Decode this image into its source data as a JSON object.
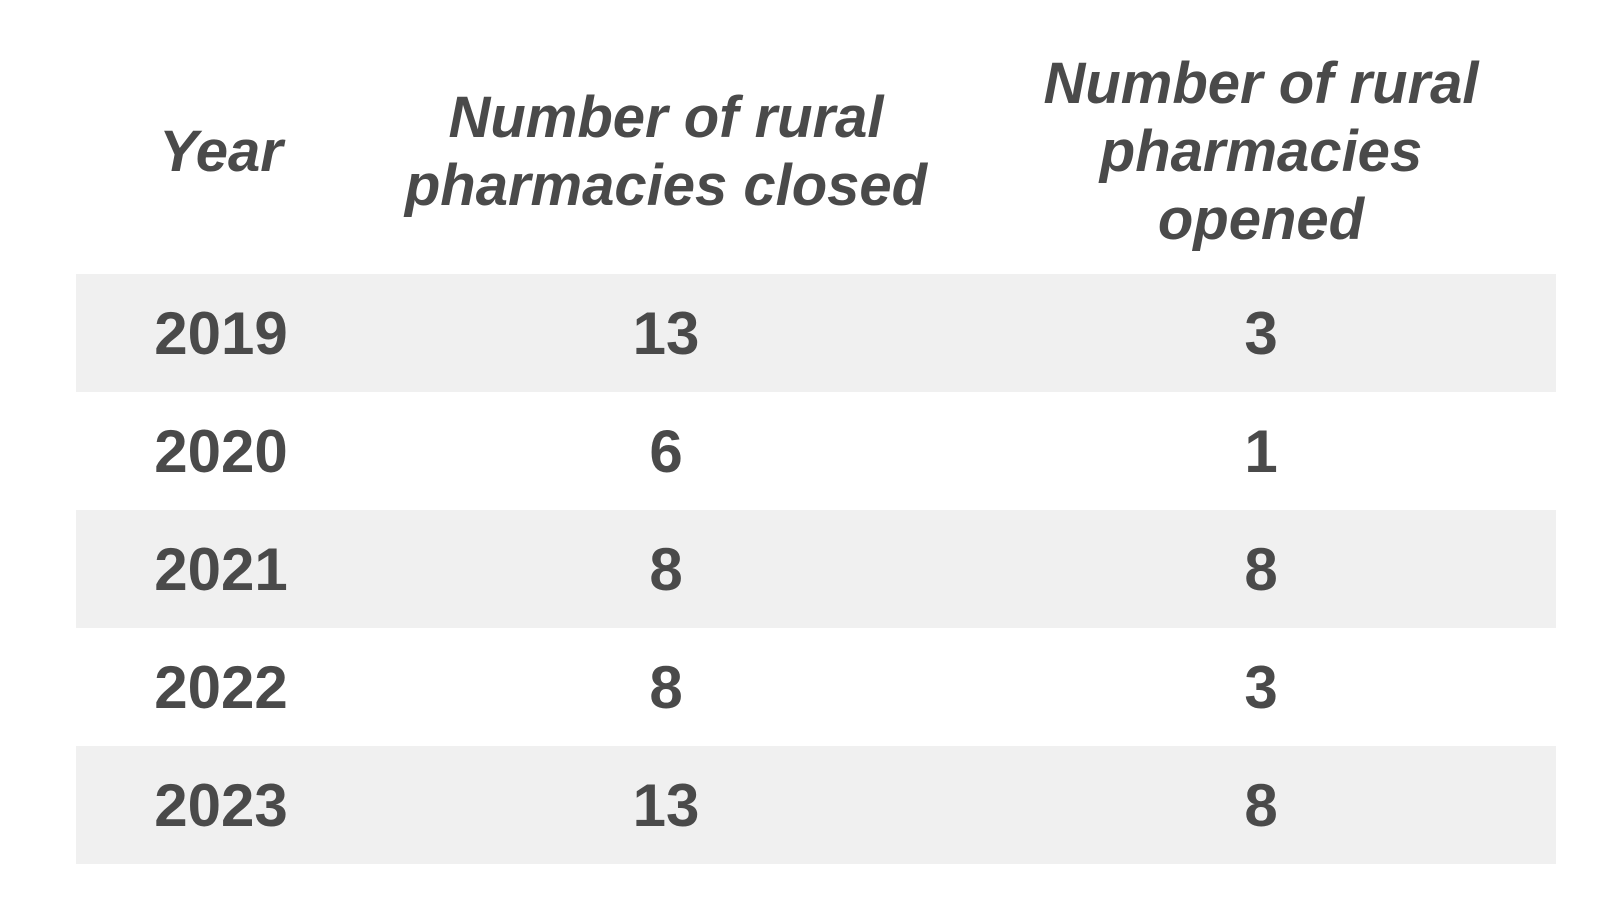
{
  "chart_data": {
    "type": "table",
    "columns": [
      "Year",
      "Number of rural pharmacies closed",
      "Number of rural pharmacies opened"
    ],
    "rows": [
      [
        "2019",
        "13",
        "3"
      ],
      [
        "2020",
        "6",
        "1"
      ],
      [
        "2021",
        "8",
        "8"
      ],
      [
        "2022",
        "8",
        "3"
      ],
      [
        "2023",
        "13",
        "8"
      ]
    ],
    "row_shading": [
      "#f0f0f0",
      "#ffffff",
      "#f0f0f0",
      "#ffffff",
      "#f0f0f0"
    ],
    "text_color": "#4a4a4a"
  }
}
